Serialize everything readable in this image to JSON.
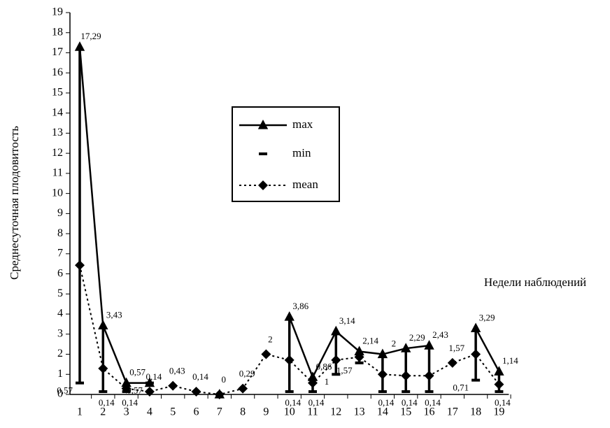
{
  "chart_data": {
    "type": "line",
    "y_label": "Среднесуточная плодовитость",
    "x_label": "Недели наблюдений",
    "categories": [
      "1",
      "2",
      "3",
      "4",
      "5",
      "6",
      "7",
      "8",
      "9",
      "10",
      "11",
      "12",
      "13",
      "14",
      "15",
      "16",
      "17",
      "18",
      "19"
    ],
    "ylim": [
      0,
      19
    ],
    "yticks": [
      0,
      1,
      2,
      3,
      4,
      5,
      6,
      7,
      8,
      9,
      10,
      11,
      12,
      13,
      14,
      15,
      16,
      17,
      18,
      19
    ],
    "series": [
      {
        "name": "max",
        "color": "#000000",
        "values": [
          17.29,
          3.43,
          0.57,
          0.57,
          null,
          null,
          0,
          null,
          null,
          3.86,
          0.86,
          3.14,
          2.14,
          2,
          2.29,
          2.43,
          null,
          3.29,
          1.14
        ],
        "value_labels": [
          "17,29",
          "3,43",
          "0,57",
          null,
          null,
          null,
          null,
          null,
          null,
          "3,86",
          "0,86",
          "3,14",
          "2,14",
          "2",
          "2,29",
          "2,43",
          null,
          "3,29",
          "1,14"
        ]
      },
      {
        "name": "min",
        "color": "#000000",
        "values": [
          0.57,
          0.14,
          0.14,
          0.57,
          null,
          null,
          null,
          null,
          null,
          0.14,
          0.14,
          1,
          1.57,
          0.14,
          0.14,
          0.14,
          null,
          0.71,
          0.14
        ],
        "value_labels": [
          "0,57",
          "0,14",
          "0,14",
          "0,57",
          null,
          null,
          null,
          null,
          null,
          "0,14",
          "0,14",
          "1",
          "1,57",
          "0,14",
          "0,14",
          "0,14",
          null,
          "0,71",
          "0,14"
        ]
      },
      {
        "name": "mean",
        "color": "#000000",
        "values": [
          6.43,
          1.29,
          0.29,
          0.14,
          0.43,
          0.14,
          0,
          0.29,
          2,
          1.71,
          0.57,
          1.71,
          1.86,
          1,
          0.93,
          0.93,
          1.57,
          2,
          0.5
        ],
        "value_labels": [
          null,
          null,
          null,
          "0,14",
          "0,43",
          "0,14",
          "0",
          "0,29",
          "2",
          null,
          null,
          null,
          null,
          null,
          null,
          null,
          "1,57",
          null,
          null
        ]
      }
    ]
  }
}
